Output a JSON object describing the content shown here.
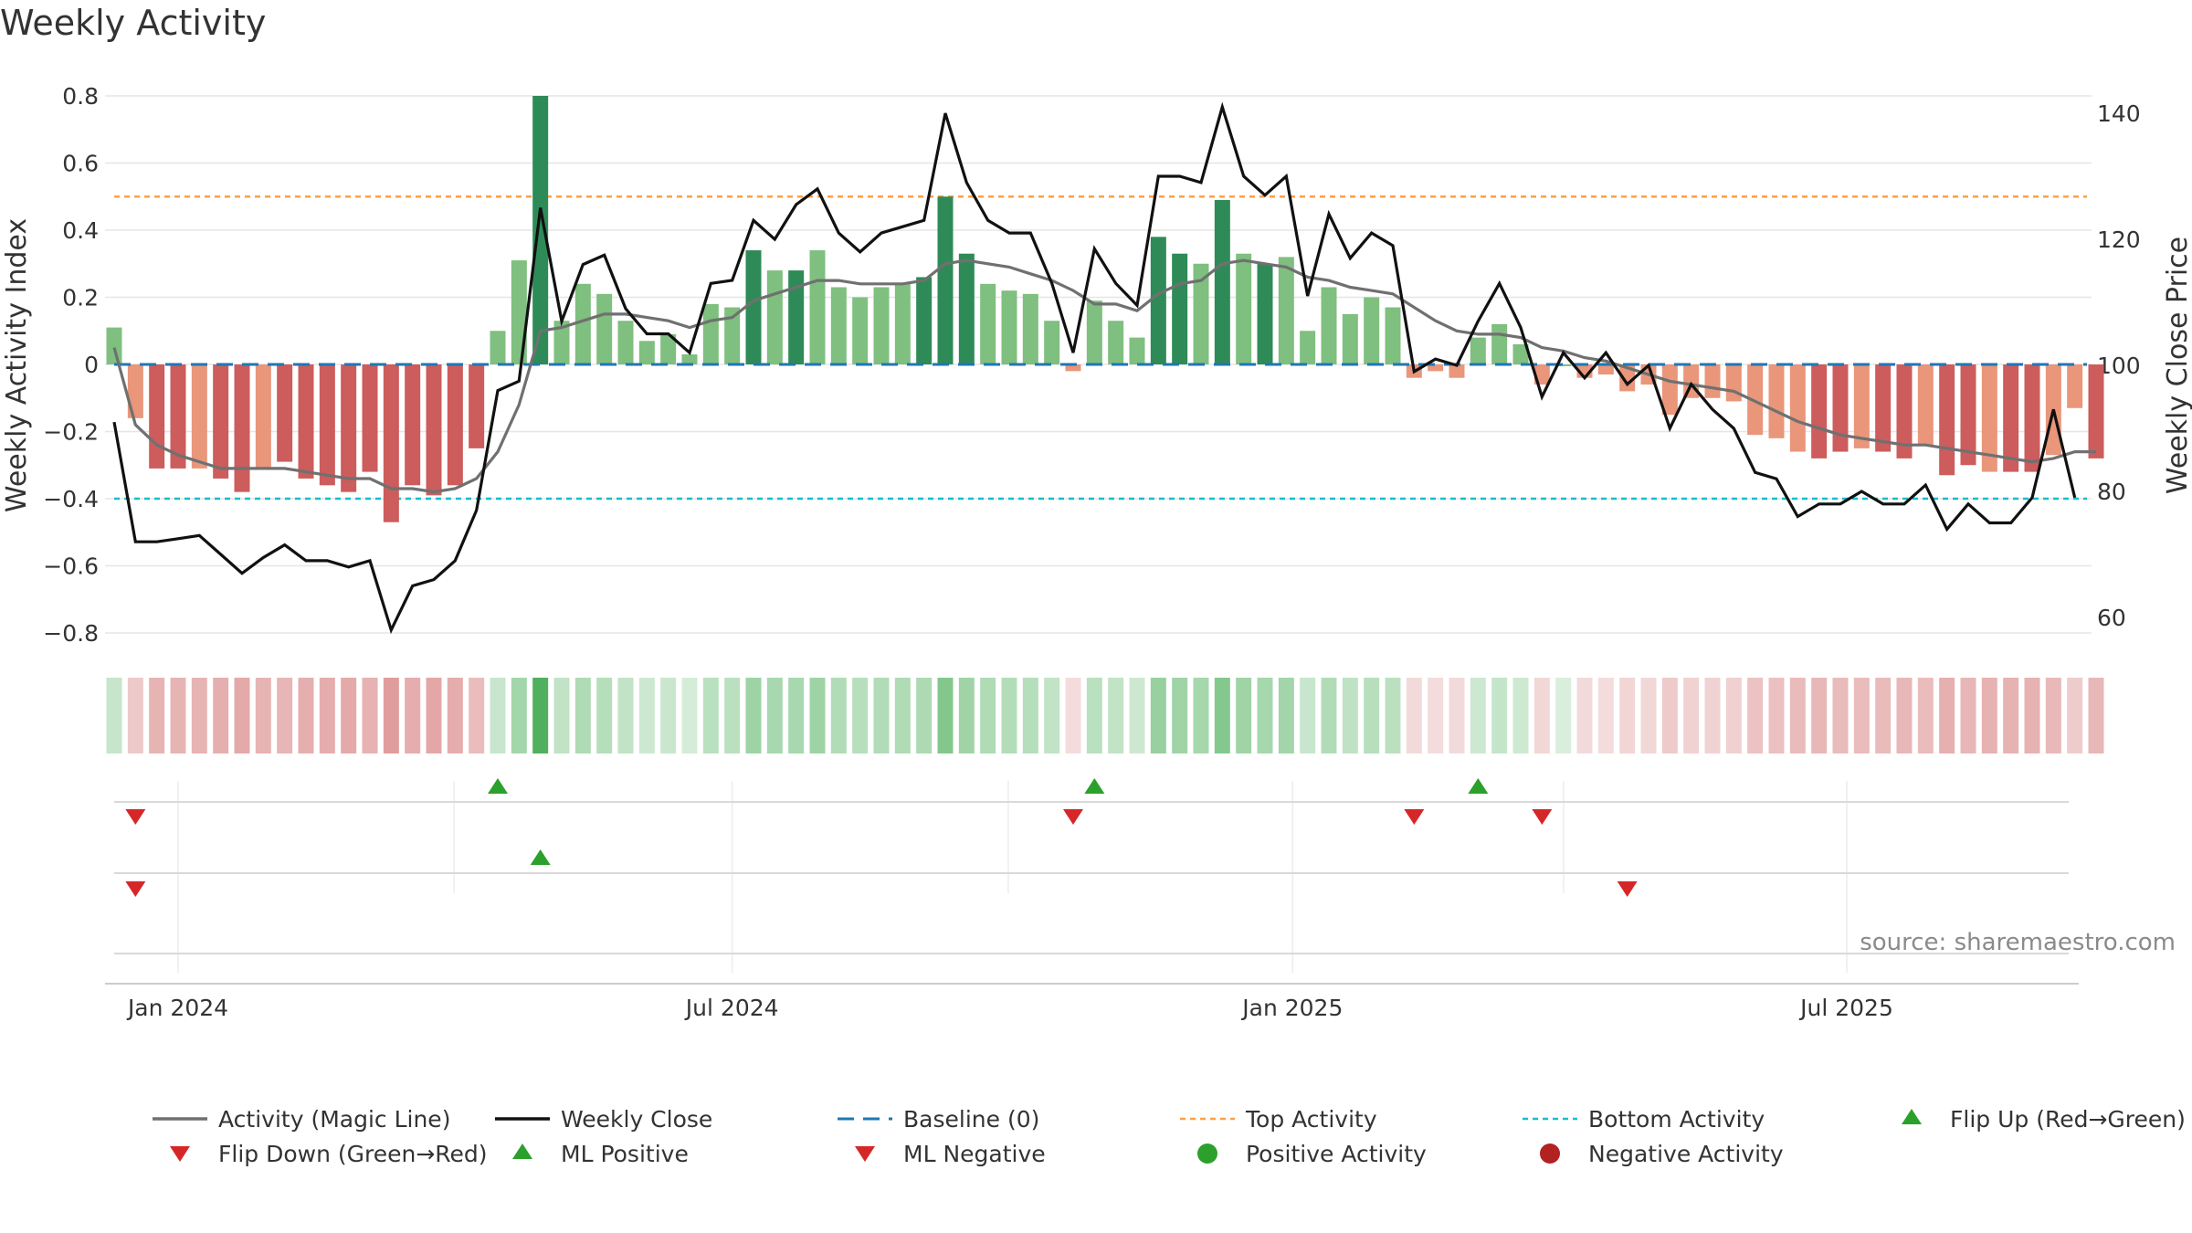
{
  "chart_data": {
    "type": "bar",
    "title": "Weekly Activity",
    "ylabel": "Weekly Activity Index",
    "y2label": "Weekly Close Price",
    "ylim": [
      -0.87,
      0.82
    ],
    "y2lim": [
      56,
      145
    ],
    "yticks": [
      0.8,
      0.6,
      0.4,
      0.2,
      0,
      -0.2,
      -0.4,
      -0.6,
      -0.8
    ],
    "ytick_labels": [
      "0.8",
      "0.6",
      "0.4",
      "0.2",
      "0",
      "−0.2",
      "−0.4",
      "−0.6",
      "−0.8"
    ],
    "y2ticks": [
      140,
      120,
      100,
      80,
      60
    ],
    "x_date_ticks": [
      {
        "label": "Jan 2024",
        "week_index": 3
      },
      {
        "label": "Jul 2024",
        "week_index": 29
      },
      {
        "label": "Jan 2025",
        "week_index": 55.3
      },
      {
        "label": "Jul 2025",
        "week_index": 81.3
      }
    ],
    "first_week": "2023-12-04",
    "reference_lines": {
      "baseline": 0,
      "top_activity": 0.5,
      "bottom_activity": -0.4
    },
    "activity_index": [
      0.11,
      -0.16,
      -0.31,
      -0.31,
      -0.31,
      -0.34,
      -0.38,
      -0.31,
      -0.29,
      -0.34,
      -0.36,
      -0.38,
      -0.32,
      -0.47,
      -0.36,
      -0.39,
      -0.36,
      -0.25,
      0.1,
      0.31,
      0.8,
      0.13,
      0.24,
      0.21,
      0.13,
      0.07,
      0.09,
      0.03,
      0.18,
      0.17,
      0.34,
      0.28,
      0.28,
      0.34,
      0.23,
      0.2,
      0.23,
      0.24,
      0.26,
      0.5,
      0.33,
      0.24,
      0.22,
      0.21,
      0.13,
      -0.02,
      0.19,
      0.13,
      0.08,
      0.38,
      0.33,
      0.3,
      0.49,
      0.33,
      0.3,
      0.32,
      0.1,
      0.23,
      0.15,
      0.2,
      0.17,
      -0.04,
      -0.02,
      -0.04,
      0.08,
      0.12,
      0.06,
      -0.06,
      0.0,
      -0.04,
      -0.03,
      -0.08,
      -0.06,
      -0.15,
      -0.1,
      -0.1,
      -0.11,
      -0.21,
      -0.22,
      -0.26,
      -0.28,
      -0.26,
      -0.25,
      -0.26,
      -0.28,
      -0.24,
      -0.33,
      -0.3,
      -0.32,
      -0.32,
      -0.32,
      -0.27,
      -0.13,
      -0.28
    ],
    "magic_line": [
      0.05,
      -0.18,
      -0.24,
      -0.27,
      -0.29,
      -0.31,
      -0.31,
      -0.31,
      -0.31,
      -0.32,
      -0.33,
      -0.34,
      -0.34,
      -0.37,
      -0.37,
      -0.38,
      -0.37,
      -0.34,
      -0.26,
      -0.12,
      0.1,
      0.11,
      0.13,
      0.15,
      0.15,
      0.14,
      0.13,
      0.11,
      0.13,
      0.14,
      0.19,
      0.21,
      0.23,
      0.25,
      0.25,
      0.24,
      0.24,
      0.24,
      0.25,
      0.3,
      0.31,
      0.3,
      0.29,
      0.27,
      0.25,
      0.22,
      0.18,
      0.18,
      0.16,
      0.21,
      0.24,
      0.25,
      0.3,
      0.31,
      0.3,
      0.29,
      0.26,
      0.25,
      0.23,
      0.22,
      0.21,
      0.17,
      0.13,
      0.1,
      0.09,
      0.09,
      0.08,
      0.05,
      0.04,
      0.02,
      0.01,
      -0.01,
      -0.03,
      -0.05,
      -0.06,
      -0.07,
      -0.08,
      -0.11,
      -0.14,
      -0.17,
      -0.19,
      -0.21,
      -0.22,
      -0.23,
      -0.24,
      -0.24,
      -0.25,
      -0.26,
      -0.27,
      -0.28,
      -0.29,
      -0.28,
      -0.26,
      -0.26
    ],
    "weekly_close": [
      91,
      72,
      72,
      72.5,
      73,
      70,
      67,
      69.5,
      71.5,
      69,
      69,
      68,
      69,
      58,
      65,
      66,
      69,
      77,
      96,
      97.5,
      125,
      107,
      116,
      117.5,
      109,
      105,
      105,
      102,
      113,
      113.5,
      123,
      120,
      125.5,
      128,
      121,
      118,
      121,
      122,
      123,
      140,
      129,
      123,
      121,
      121,
      113,
      102,
      118.5,
      113,
      109.5,
      130,
      130,
      129,
      141,
      130,
      127,
      130,
      111,
      124,
      117,
      121,
      119,
      99,
      101,
      100,
      107,
      113,
      106,
      95,
      102,
      98,
      102,
      97,
      100,
      90,
      97,
      93,
      90,
      83,
      82,
      76,
      78,
      78,
      80,
      78,
      78,
      81,
      74,
      78,
      75,
      75,
      79,
      93,
      79
    ],
    "colors": {
      "dark_green": "#2e8b57",
      "light_green": "#7fbf7f",
      "dark_red": "#cd5c5c",
      "light_red": "#e9967a",
      "magic_line": "#707070",
      "weekly_close": "#111111",
      "baseline": "#1f77b4",
      "top_activity": "#ff9f45",
      "bottom_activity": "#17becf",
      "marker_green": "#2ca02c",
      "marker_red": "#d62728",
      "positive_activity": "#2ca02c",
      "negative_activity": "#b22222"
    },
    "flip_up_weeks": [
      18,
      46,
      64
    ],
    "flip_down_weeks": [
      1,
      45,
      61,
      67
    ],
    "ml_positive_weeks": [
      20
    ],
    "ml_negative_weeks": [
      1,
      71
    ],
    "legend": [
      {
        "label": "Activity (Magic Line)",
        "symbol": "line-gray"
      },
      {
        "label": "Weekly Close",
        "symbol": "line-black"
      },
      {
        "label": "Baseline (0)",
        "symbol": "dash-blue"
      },
      {
        "label": "Top Activity",
        "symbol": "dot-orange"
      },
      {
        "label": "Bottom Activity",
        "symbol": "dot-cyan"
      },
      {
        "label": "Flip Up (Red→Green)",
        "symbol": "triangle-up-green"
      },
      {
        "label": "Flip Down (Green→Red)",
        "symbol": "triangle-down-red"
      },
      {
        "label": "ML Positive",
        "symbol": "triangle-up-green"
      },
      {
        "label": "ML Negative",
        "symbol": "triangle-down-red"
      },
      {
        "label": "Positive Activity",
        "symbol": "circle-green"
      },
      {
        "label": "Negative Activity",
        "symbol": "circle-darkred"
      }
    ],
    "legend_placement": "bottom",
    "source": "source: sharemaestro.com"
  }
}
